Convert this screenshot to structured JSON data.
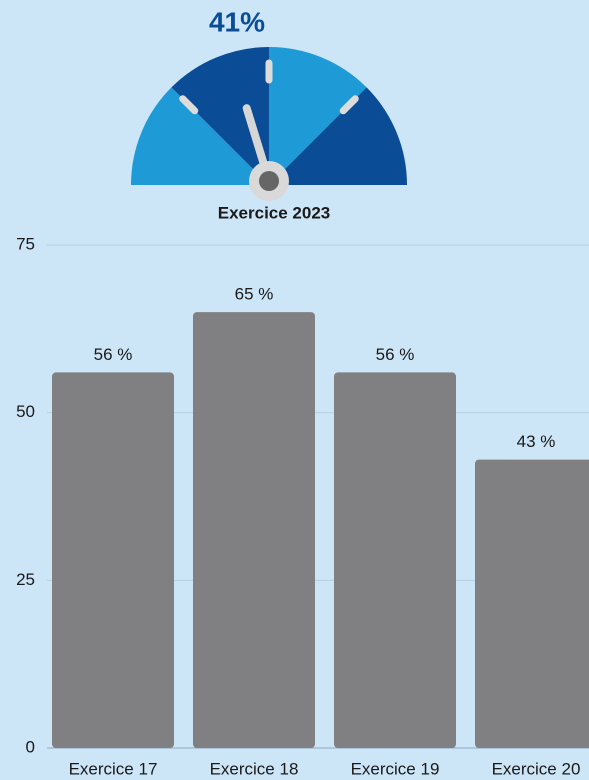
{
  "chart_data": [
    {
      "type": "gauge",
      "value": 41,
      "value_label": "41%",
      "range": [
        0,
        100
      ],
      "label": "Exercice 2023",
      "colors": [
        "#1e9ad6",
        "#0a4d96"
      ]
    },
    {
      "type": "bar",
      "categories": [
        "Exercice 17",
        "Exercice 18",
        "Exercice 19",
        "Exercice 20"
      ],
      "values": [
        56,
        65,
        56,
        43
      ],
      "value_labels": [
        "56 %",
        "65 %",
        "56 %",
        "43 %"
      ],
      "color": "#808083",
      "ylim": [
        0,
        75
      ],
      "yticks": [
        0,
        25,
        50,
        75
      ],
      "grid": true
    }
  ]
}
